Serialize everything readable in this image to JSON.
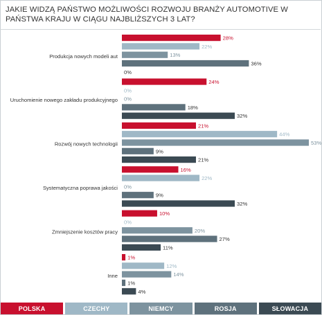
{
  "title": "JAKIE WIDZĄ PAŃSTWO MOŻLIWOŚCI ROZWOJU BRANŻY AUTOMOTIVE W PAŃSTWA KRAJU W CIĄGU NAJBLIŻSZYCH 3 LAT?",
  "chart_data": {
    "type": "bar",
    "orientation": "horizontal",
    "categories": [
      "Produkcja nowych modeli aut",
      "Uruchomienie nowego zakładu produkcyjnego",
      "Rozwój nowych technologii",
      "Systematyczna poprawa jakości",
      "Zmniejszenie kosztów pracy",
      "Inne"
    ],
    "series": [
      {
        "name": "POLSKA",
        "color": "#c8102e",
        "values": [
          28,
          24,
          21,
          16,
          10,
          1
        ]
      },
      {
        "name": "CZECHY",
        "color": "#9fb8c6",
        "values": [
          22,
          0,
          44,
          22,
          0,
          12
        ]
      },
      {
        "name": "NIEMCY",
        "color": "#7d939f",
        "values": [
          13,
          0,
          53,
          0,
          20,
          14
        ]
      },
      {
        "name": "ROSJA",
        "color": "#5e717c",
        "values": [
          36,
          18,
          9,
          9,
          27,
          1
        ]
      },
      {
        "name": "SŁOWACJA",
        "color": "#3b4a53",
        "values": [
          0,
          32,
          21,
          32,
          11,
          4
        ]
      }
    ],
    "value_suffix": "%",
    "xlim": [
      0,
      53
    ],
    "grid": false,
    "legend_position": "bottom"
  }
}
